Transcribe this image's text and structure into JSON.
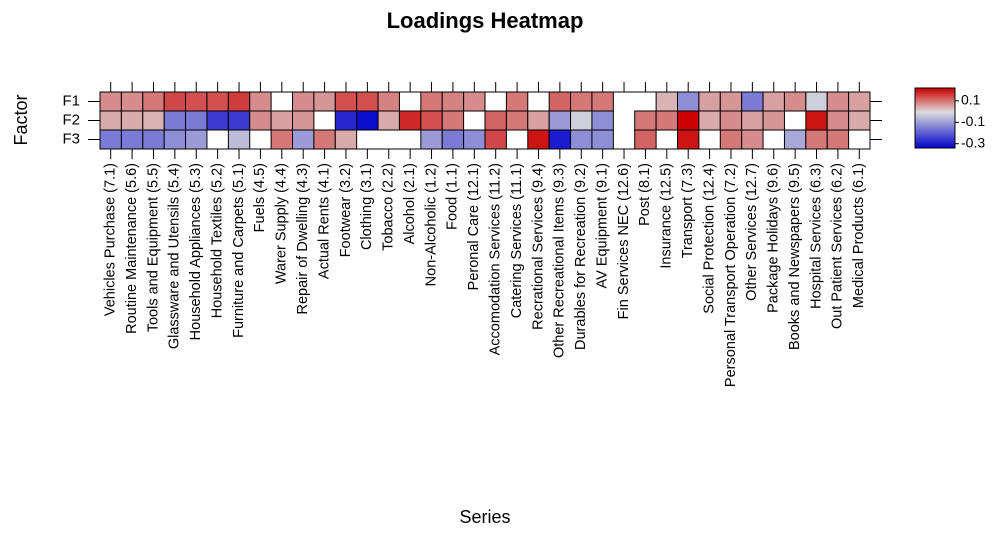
{
  "chart_data": {
    "type": "heatmap",
    "title": "Loadings Heatmap",
    "xlabel": "Series",
    "ylabel": "Factor",
    "categories": [
      "Vehicles Purchase (7.1)",
      "Routine Maintenance (5.6)",
      "Tools and Equipment (5.5)",
      "Glassware and Utensils (5.4)",
      "Household Appliances (5.3)",
      "Household Textiles (5.2)",
      "Furniture and Carpets (5.1)",
      "Fuels (4.5)",
      "Warer Supply (4.4)",
      "Repair of Dwelling (4.3)",
      "Actual Rents (4.1)",
      "Footwear (3.2)",
      "Clothing (3.1)",
      "Tobacco (2.2)",
      "Alcohol (2.1)",
      "Non-Alcoholic (1.2)",
      "Food (1.1)",
      "Peronal Care (12.1)",
      "Accomodation Services (11.2)",
      "Catering Services (11.1)",
      "Recrational Services (9.4)",
      "Other Recreational Items (9.3)",
      "Durables for Recreation (9.2)",
      "AV Equipment (9.1)",
      "Fin Services NEC (12.6)",
      "Post (8.1)",
      "Insurance (12.5)",
      "Transport (7.3)",
      "Social Protection (12.4)",
      "Personal Transport Operation (7.2)",
      "Other Services (12.7)",
      "Package Holidays (9.6)",
      "Books and Newspapers (9.5)",
      "Hospital Services (6.3)",
      "Out Patient Services (6.2)",
      "Medical Products (6.1)"
    ],
    "series": [
      {
        "name": "F1",
        "values": [
          0.08,
          0.08,
          0.1,
          0.15,
          0.14,
          0.14,
          0.16,
          0.08,
          null,
          0.08,
          0.07,
          0.14,
          0.14,
          0.09,
          null,
          0.1,
          0.09,
          0.08,
          null,
          0.1,
          null,
          0.12,
          0.1,
          0.1,
          null,
          null,
          0.04,
          -0.12,
          0.06,
          0.07,
          -0.15,
          0.06,
          0.08,
          -0.02,
          0.08,
          0.06
        ]
      },
      {
        "name": "F2",
        "values": [
          0.05,
          0.05,
          0.04,
          -0.15,
          -0.15,
          -0.25,
          -0.25,
          0.08,
          0.06,
          0.07,
          null,
          -0.28,
          -0.32,
          0.05,
          0.18,
          0.14,
          0.1,
          null,
          0.12,
          0.1,
          0.06,
          -0.1,
          -0.02,
          -0.12,
          null,
          0.1,
          0.1,
          0.22,
          0.05,
          0.08,
          0.06,
          0.07,
          null,
          0.2,
          0.08,
          0.05
        ]
      },
      {
        "name": "F3",
        "values": [
          -0.15,
          -0.15,
          -0.15,
          -0.12,
          -0.1,
          null,
          -0.05,
          null,
          0.1,
          -0.1,
          0.1,
          0.05,
          null,
          null,
          null,
          -0.1,
          -0.15,
          -0.12,
          0.15,
          null,
          0.2,
          -0.3,
          -0.12,
          -0.12,
          null,
          0.12,
          null,
          0.2,
          null,
          0.1,
          0.08,
          null,
          -0.08,
          0.1,
          0.1,
          null
        ]
      }
    ],
    "zlim": [
      -0.34,
      0.22
    ],
    "zticks": [
      0.1,
      -0.1,
      -0.3
    ],
    "colors": {
      "low": "#0000cd",
      "mid": "#dcdcdc",
      "high": "#cc0000"
    }
  }
}
